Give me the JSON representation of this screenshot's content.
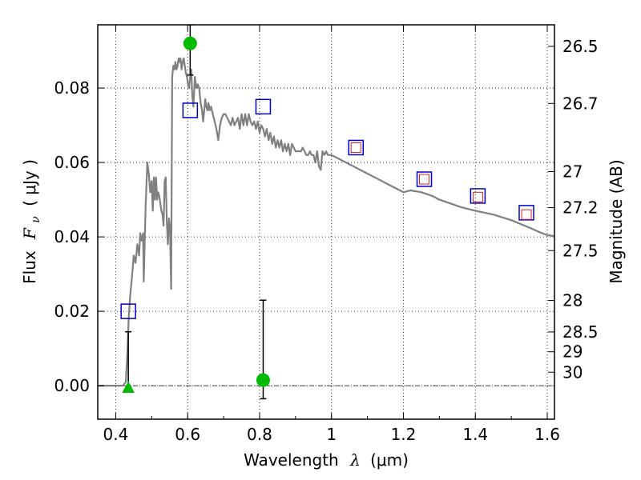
{
  "chart_data": {
    "type": "scatter",
    "xlabel": "Wavelength",
    "xlabel_symbol": "λ",
    "xlabel_unit": "(μm)",
    "ylabel": "Flux",
    "ylabel_symbol": "F",
    "ylabel_subscript": "ν",
    "ylabel_unit": "( μJy )",
    "y2label": "Magnitude (AB)",
    "xlim": [
      0.35,
      1.62
    ],
    "ylim": [
      -0.009,
      0.097
    ],
    "grid": true,
    "x_ticks": [
      0.4,
      0.6,
      0.8,
      1.0,
      1.2,
      1.4,
      1.6
    ],
    "x_tick_labels": [
      "0.4",
      "0.6",
      "0.8",
      "1",
      "1.2",
      "1.4",
      "1.6"
    ],
    "y_ticks": [
      0.0,
      0.02,
      0.04,
      0.06,
      0.08
    ],
    "y_tick_labels": [
      "0.00",
      "0.02",
      "0.04",
      "0.06",
      "0.08"
    ],
    "y2_ticks": [
      {
        "label": "26.5",
        "mag": 26.5
      },
      {
        "label": "26.7",
        "mag": 26.7
      },
      {
        "label": "27",
        "mag": 27.0
      },
      {
        "label": "27.2",
        "mag": 27.2
      },
      {
        "label": "27.5",
        "mag": 27.5
      },
      {
        "label": "28",
        "mag": 28.0
      },
      {
        "label": "28.5",
        "mag": 28.5
      },
      {
        "label": "29",
        "mag": 29.0
      },
      {
        "label": "30",
        "mag": 30.0
      }
    ],
    "series": [
      {
        "kind": "model-spectrum",
        "color": "#808080",
        "x": [
          0.35,
          0.42,
          0.428,
          0.432,
          0.436,
          0.44,
          0.445,
          0.45,
          0.455,
          0.46,
          0.465,
          0.468,
          0.472,
          0.476,
          0.478,
          0.483,
          0.488,
          0.492,
          0.496,
          0.5,
          0.503,
          0.506,
          0.509,
          0.512,
          0.515,
          0.518,
          0.521,
          0.524,
          0.527,
          0.53,
          0.533,
          0.536,
          0.539,
          0.542,
          0.545,
          0.548,
          0.551,
          0.554,
          0.557,
          0.56,
          0.563,
          0.566,
          0.569,
          0.572,
          0.575,
          0.578,
          0.58,
          0.583,
          0.586,
          0.589,
          0.592,
          0.595,
          0.598,
          0.601,
          0.604,
          0.607,
          0.61,
          0.613,
          0.616,
          0.62,
          0.624,
          0.628,
          0.632,
          0.636,
          0.64,
          0.643,
          0.646,
          0.649,
          0.652,
          0.655,
          0.658,
          0.661,
          0.665,
          0.67,
          0.675,
          0.68,
          0.685,
          0.69,
          0.695,
          0.7,
          0.705,
          0.71,
          0.715,
          0.72,
          0.725,
          0.73,
          0.74,
          0.745,
          0.75,
          0.755,
          0.76,
          0.765,
          0.77,
          0.775,
          0.78,
          0.785,
          0.79,
          0.795,
          0.8,
          0.805,
          0.81,
          0.815,
          0.82,
          0.825,
          0.83,
          0.835,
          0.84,
          0.845,
          0.85,
          0.855,
          0.86,
          0.865,
          0.87,
          0.875,
          0.88,
          0.885,
          0.89,
          0.895,
          0.9,
          0.905,
          0.91,
          0.915,
          0.92,
          0.925,
          0.93,
          0.935,
          0.94,
          0.945,
          0.95,
          0.955,
          0.96,
          0.965,
          0.97,
          0.975,
          0.98,
          0.985,
          0.99,
          0.995,
          1.0,
          1.02,
          1.04,
          1.06,
          1.08,
          1.1,
          1.12,
          1.14,
          1.16,
          1.18,
          1.2,
          1.22,
          1.25,
          1.28,
          1.3,
          1.33,
          1.36,
          1.4,
          1.45,
          1.5,
          1.55,
          1.58,
          1.6,
          1.62
        ],
        "y": [
          0.0,
          0.0,
          0.001,
          0.008,
          0.018,
          0.024,
          0.029,
          0.035,
          0.033,
          0.038,
          0.035,
          0.041,
          0.039,
          0.041,
          0.028,
          0.048,
          0.06,
          0.057,
          0.052,
          0.055,
          0.047,
          0.056,
          0.05,
          0.056,
          0.05,
          0.052,
          0.051,
          0.049,
          0.047,
          0.046,
          0.043,
          0.055,
          0.056,
          0.044,
          0.038,
          0.045,
          0.042,
          0.026,
          0.083,
          0.086,
          0.085,
          0.087,
          0.085,
          0.086,
          0.088,
          0.087,
          0.088,
          0.085,
          0.087,
          0.088,
          0.086,
          0.084,
          0.083,
          0.081,
          0.08,
          0.083,
          0.085,
          0.078,
          0.075,
          0.083,
          0.08,
          0.081,
          0.08,
          0.076,
          0.074,
          0.071,
          0.074,
          0.077,
          0.075,
          0.074,
          0.076,
          0.074,
          0.075,
          0.073,
          0.071,
          0.069,
          0.066,
          0.07,
          0.072,
          0.073,
          0.073,
          0.072,
          0.071,
          0.07,
          0.072,
          0.07,
          0.072,
          0.069,
          0.073,
          0.07,
          0.073,
          0.07,
          0.073,
          0.071,
          0.07,
          0.071,
          0.069,
          0.071,
          0.068,
          0.07,
          0.069,
          0.067,
          0.069,
          0.066,
          0.068,
          0.065,
          0.067,
          0.064,
          0.066,
          0.064,
          0.066,
          0.063,
          0.065,
          0.063,
          0.065,
          0.062,
          0.065,
          0.064,
          0.063,
          0.063,
          0.063,
          0.063,
          0.064,
          0.063,
          0.062,
          0.062,
          0.063,
          0.062,
          0.062,
          0.06,
          0.063,
          0.059,
          0.058,
          0.063,
          0.062,
          0.063,
          0.062,
          0.062,
          0.062,
          0.061,
          0.06,
          0.059,
          0.058,
          0.057,
          0.056,
          0.055,
          0.054,
          0.053,
          0.052,
          0.0525,
          0.052,
          0.051,
          0.05,
          0.049,
          0.048,
          0.047,
          0.046,
          0.0445,
          0.0425,
          0.0412,
          0.0405,
          0.0402
        ]
      },
      {
        "kind": "photometry-blue-squares",
        "color": "#0000cc",
        "x": [
          0.435,
          0.607,
          0.81,
          1.068,
          1.258,
          1.407,
          1.542
        ],
        "y": [
          0.02,
          0.074,
          0.075,
          0.064,
          0.0555,
          0.051,
          0.0465
        ]
      },
      {
        "kind": "model-red-squares",
        "color": "#e02020",
        "x": [
          1.068,
          1.258,
          1.407,
          1.542
        ],
        "y": [
          0.064,
          0.0555,
          0.0507,
          0.046
        ]
      },
      {
        "kind": "detections-green-circles",
        "color": "#00bb00",
        "points": [
          {
            "x": 0.607,
            "y": 0.092,
            "err_low": 0.0835,
            "err_high": 0.097
          },
          {
            "x": 0.81,
            "y": 0.0015,
            "err_low": -0.0035,
            "err_high": 0.023
          }
        ]
      },
      {
        "kind": "upper-limit-green-triangle",
        "color": "#00bb00",
        "points": [
          {
            "x": 0.435,
            "y": -0.0005,
            "err_low": -0.0005,
            "err_high": 0.0145
          }
        ]
      }
    ],
    "zero_line": {
      "y": 0.0,
      "style": "dashdot",
      "color": "#000000"
    }
  }
}
